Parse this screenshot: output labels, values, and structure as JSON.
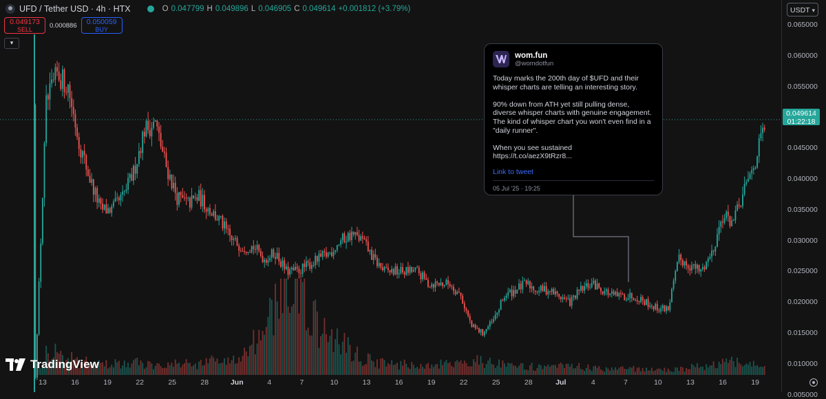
{
  "header": {
    "title": "UFD / Tether USD · 4h · HTX",
    "ohlc": [
      {
        "k": "O",
        "v": "0.047799"
      },
      {
        "k": "H",
        "v": "0.049896"
      },
      {
        "k": "L",
        "v": "0.046905"
      },
      {
        "k": "C",
        "v": "0.049614"
      }
    ],
    "change": "+0.001812 (+3.79%)",
    "status_color": "#26a69a"
  },
  "trade": {
    "sell_price": "0.049173",
    "sell_label": "SELL",
    "spread": "0.000886",
    "buy_price": "0.050059",
    "buy_label": "BUY"
  },
  "currency": "USDT",
  "price_axis": [
    "0.065000",
    "0.060000",
    "0.055000",
    "0.050000",
    "0.045000",
    "0.040000",
    "0.035000",
    "0.030000",
    "0.025000",
    "0.020000",
    "0.015000",
    "0.010000",
    "0.005000"
  ],
  "current_price": {
    "price": "0.049614",
    "countdown": "01:22:18"
  },
  "time_axis": [
    "13",
    "16",
    "19",
    "22",
    "25",
    "28",
    "Jun",
    "4",
    "7",
    "10",
    "13",
    "16",
    "19",
    "22",
    "25",
    "28",
    "Jul",
    "4",
    "7",
    "10",
    "13",
    "16",
    "19"
  ],
  "logo": "TradingView",
  "icons": {
    "collapse": "chevron-down-icon",
    "settings": "settings-icon",
    "symbol": "symbol-logo-icon"
  },
  "colors": {
    "up": "#26a69a",
    "down": "#ef5350",
    "sell": "#f23645",
    "buy": "#2962ff"
  },
  "tweet": {
    "name": "wom.fun",
    "handle": "@womdotfun",
    "text": "Today marks the 200th day of $UFD and their whisper charts are telling an interesting story.\n\n90% down from ATH yet still pulling dense, diverse whisper charts with genuine engagement. The kind of whisper chart you won't even find in a  \"daily runner\".\n\nWhen you see sustained\nhttps://t.co/aezX9tRzr8...",
    "link": "Link to tweet",
    "date": "05 Jul '25 · 19:25"
  },
  "chart_data": {
    "type": "candlestick",
    "interval": "4h",
    "x": [
      "May 12",
      "May 13",
      "May 14",
      "May 15",
      "May 16",
      "May 17",
      "May 18",
      "May 19",
      "May 20",
      "May 21",
      "May 22",
      "May 23",
      "May 24",
      "May 25",
      "May 26",
      "May 27",
      "May 28",
      "May 29",
      "May 30",
      "May 31",
      "Jun 1",
      "Jun 2",
      "Jun 3",
      "Jun 4",
      "Jun 5",
      "Jun 6",
      "Jun 7",
      "Jun 8",
      "Jun 9",
      "Jun 10",
      "Jun 11",
      "Jun 12",
      "Jun 13",
      "Jun 14",
      "Jun 15",
      "Jun 16",
      "Jun 17",
      "Jun 18",
      "Jun 19",
      "Jun 20",
      "Jun 21",
      "Jun 22",
      "Jun 23",
      "Jun 24",
      "Jun 25",
      "Jun 26",
      "Jun 27",
      "Jun 28",
      "Jun 29",
      "Jun 30",
      "Jul 1",
      "Jul 2",
      "Jul 3",
      "Jul 4",
      "Jul 5",
      "Jul 6",
      "Jul 7",
      "Jul 8",
      "Jul 9",
      "Jul 10",
      "Jul 11",
      "Jul 12",
      "Jul 13",
      "Jul 14",
      "Jul 15",
      "Jul 16",
      "Jul 17",
      "Jul 18"
    ],
    "price_path": [
      0.008,
      0.052,
      0.057,
      0.055,
      0.046,
      0.04,
      0.035,
      0.035,
      0.037,
      0.041,
      0.048,
      0.049,
      0.042,
      0.037,
      0.036,
      0.037,
      0.035,
      0.033,
      0.03,
      0.029,
      0.029,
      0.027,
      0.028,
      0.025,
      0.025,
      0.026,
      0.027,
      0.028,
      0.03,
      0.031,
      0.03,
      0.027,
      0.025,
      0.025,
      0.025,
      0.025,
      0.023,
      0.023,
      0.023,
      0.021,
      0.016,
      0.015,
      0.017,
      0.021,
      0.022,
      0.023,
      0.022,
      0.022,
      0.021,
      0.02,
      0.022,
      0.023,
      0.022,
      0.021,
      0.021,
      0.021,
      0.02,
      0.019,
      0.019,
      0.027,
      0.026,
      0.025,
      0.028,
      0.034,
      0.033,
      0.038,
      0.043,
      0.0496
    ],
    "volume_relative": [
      0.1,
      0.25,
      0.2,
      0.15,
      0.12,
      0.1,
      0.1,
      0.12,
      0.1,
      0.12,
      0.1,
      0.12,
      0.1,
      0.12,
      0.1,
      0.12,
      0.15,
      0.13,
      0.15,
      0.2,
      0.3,
      0.55,
      0.75,
      0.9,
      0.7,
      0.5,
      0.4,
      0.35,
      0.3,
      0.2,
      0.15,
      0.12,
      0.1,
      0.1,
      0.1,
      0.08,
      0.08,
      0.1,
      0.1,
      0.12,
      0.15,
      0.12,
      0.1,
      0.08,
      0.08,
      0.08,
      0.07,
      0.07,
      0.08,
      0.08,
      0.07,
      0.06,
      0.06,
      0.07,
      0.06,
      0.06,
      0.05,
      0.05,
      0.05,
      0.06,
      0.08,
      0.07,
      0.1,
      0.12,
      0.12,
      0.1,
      0.08,
      0.08
    ],
    "ylim": [
      0.005,
      0.065
    ]
  }
}
